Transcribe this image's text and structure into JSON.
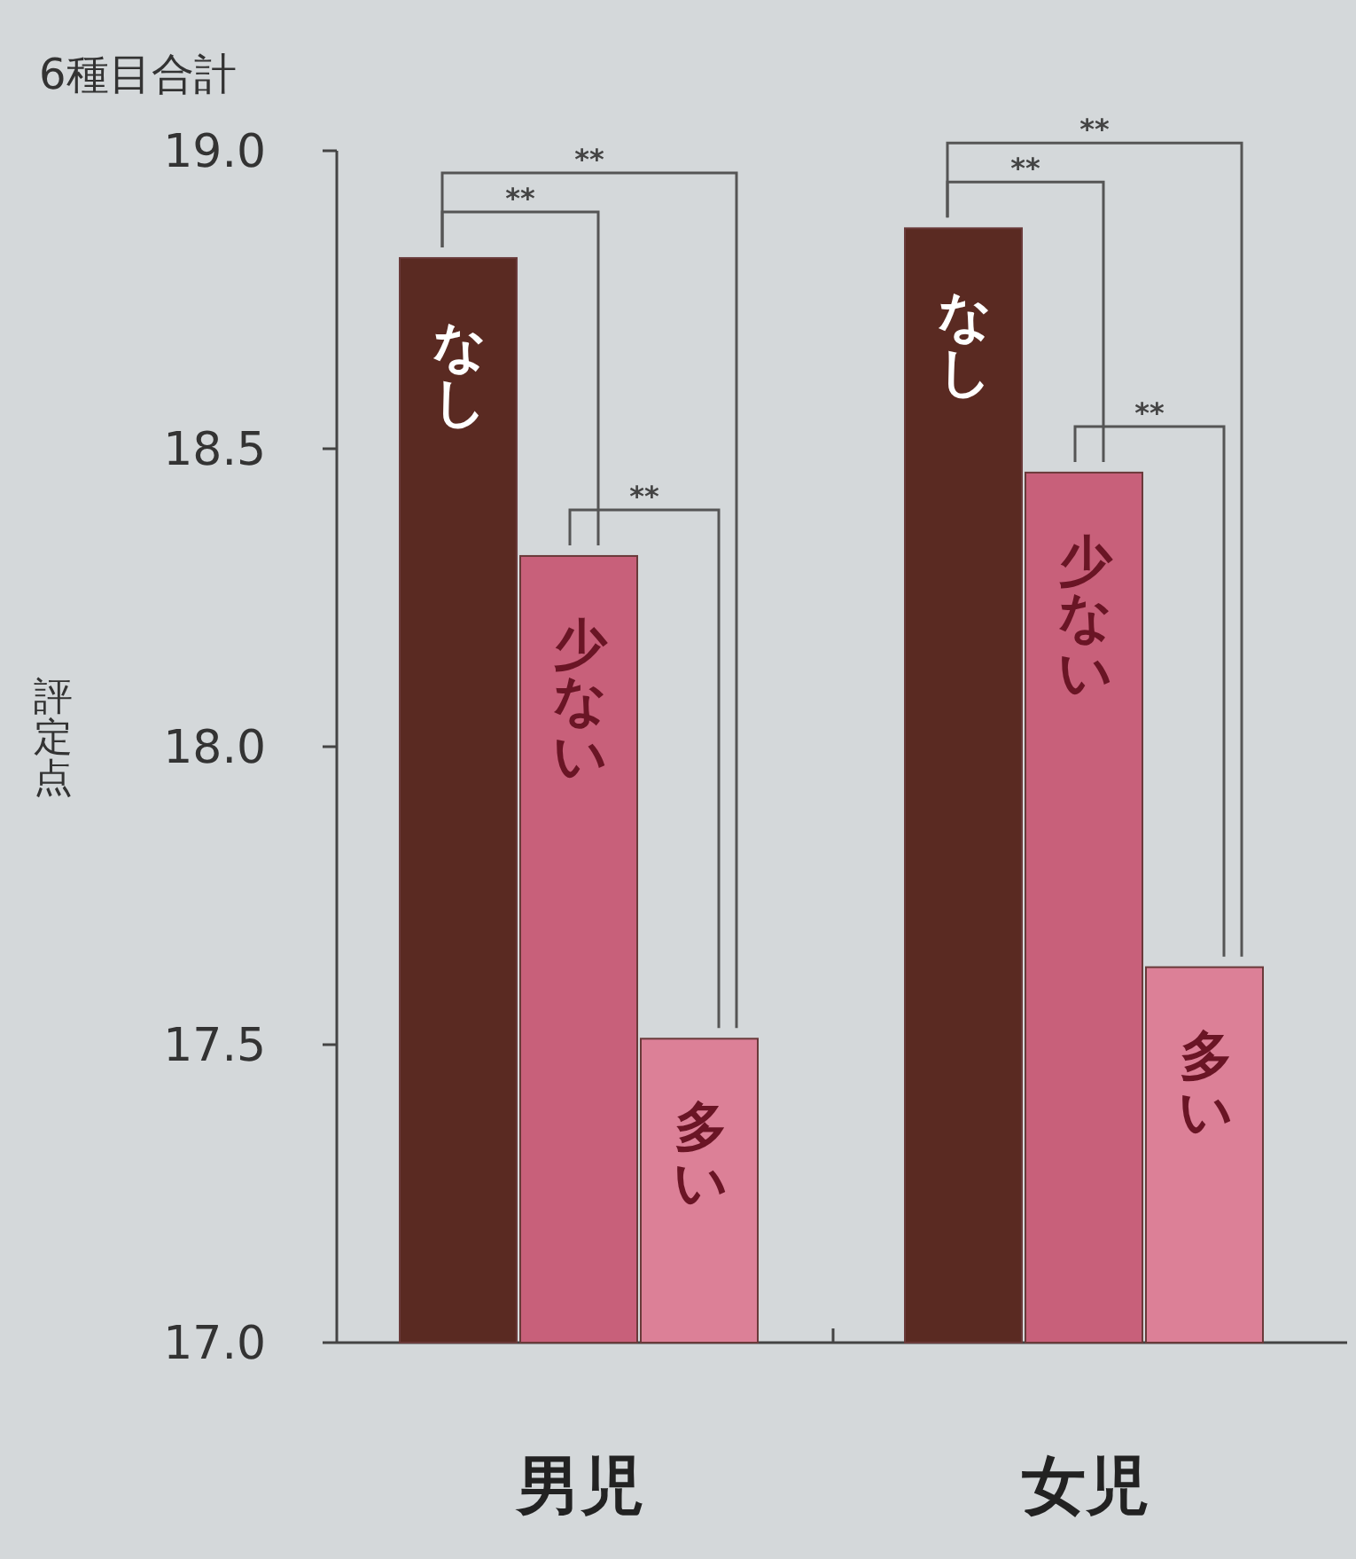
{
  "chart_data": {
    "type": "bar",
    "title": "6種目合計",
    "ylabel": "評定点",
    "categories": [
      "男児",
      "女児"
    ],
    "series": [
      {
        "name": "なし",
        "color": "#5a2a22",
        "values": [
          18.82,
          18.87
        ]
      },
      {
        "name": "少ない",
        "color": "#c8607a",
        "values": [
          18.32,
          18.46
        ]
      },
      {
        "name": "多い",
        "color": "#dc8097",
        "values": [
          17.51,
          17.63
        ]
      }
    ],
    "ylim": [
      17,
      19
    ],
    "yticks": [
      {
        "value": 17,
        "label": "17.0"
      },
      {
        "value": 17.5,
        "label": "17.5"
      },
      {
        "value": 18,
        "label": "18.0"
      },
      {
        "value": 18.5,
        "label": "18.5"
      },
      {
        "value": 19,
        "label": "19.0"
      }
    ],
    "annotations": [
      "**",
      "**",
      "**",
      "**",
      "**",
      "**"
    ]
  }
}
